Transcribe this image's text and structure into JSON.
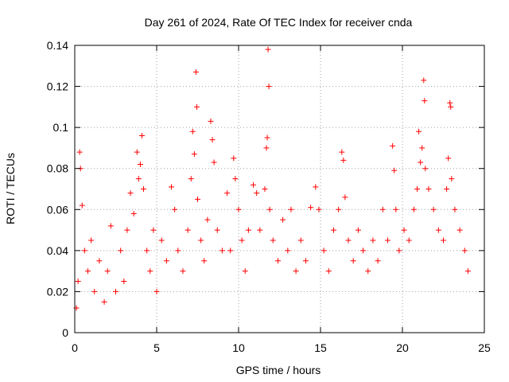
{
  "chart_data": {
    "type": "scatter",
    "title": "Day 261 of 2024, Rate Of TEC Index for receiver cnda",
    "xlabel": "GPS time / hours",
    "ylabel": "ROTI / TECUs",
    "xlim": [
      0,
      25
    ],
    "ylim": [
      0,
      0.14
    ],
    "xticks": [
      0,
      5,
      10,
      15,
      20,
      25
    ],
    "xtick_labels": [
      "0",
      "5",
      "10",
      "15",
      "20",
      "25"
    ],
    "yticks": [
      0,
      0.02,
      0.04,
      0.06,
      0.08,
      0.1,
      0.12,
      0.14
    ],
    "ytick_labels": [
      "0",
      "0.02",
      "0.04",
      "0.06",
      "0.08",
      "0.1",
      "0.12",
      "0.14"
    ],
    "grid": true,
    "marker": "plus",
    "series_color": "#ff0000",
    "series": [
      {
        "name": "ROTI",
        "points": [
          [
            0.1,
            0.012
          ],
          [
            0.2,
            0.025
          ],
          [
            0.3,
            0.088
          ],
          [
            0.35,
            0.08
          ],
          [
            0.45,
            0.062
          ],
          [
            0.6,
            0.04
          ],
          [
            0.8,
            0.03
          ],
          [
            1.0,
            0.045
          ],
          [
            1.2,
            0.02
          ],
          [
            1.5,
            0.035
          ],
          [
            1.8,
            0.015
          ],
          [
            2.0,
            0.03
          ],
          [
            2.2,
            0.052
          ],
          [
            2.5,
            0.02
          ],
          [
            2.8,
            0.04
          ],
          [
            3.0,
            0.025
          ],
          [
            3.2,
            0.05
          ],
          [
            3.4,
            0.068
          ],
          [
            3.6,
            0.058
          ],
          [
            3.8,
            0.088
          ],
          [
            3.9,
            0.075
          ],
          [
            4.0,
            0.082
          ],
          [
            4.1,
            0.096
          ],
          [
            4.2,
            0.07
          ],
          [
            4.4,
            0.04
          ],
          [
            4.6,
            0.03
          ],
          [
            4.8,
            0.05
          ],
          [
            5.0,
            0.02
          ],
          [
            5.3,
            0.045
          ],
          [
            5.6,
            0.035
          ],
          [
            5.9,
            0.071
          ],
          [
            6.1,
            0.06
          ],
          [
            6.3,
            0.04
          ],
          [
            6.6,
            0.03
          ],
          [
            6.9,
            0.05
          ],
          [
            7.1,
            0.075
          ],
          [
            7.2,
            0.098
          ],
          [
            7.3,
            0.087
          ],
          [
            7.4,
            0.127
          ],
          [
            7.45,
            0.11
          ],
          [
            7.5,
            0.065
          ],
          [
            7.7,
            0.045
          ],
          [
            7.9,
            0.035
          ],
          [
            8.1,
            0.055
          ],
          [
            8.3,
            0.103
          ],
          [
            8.4,
            0.094
          ],
          [
            8.5,
            0.083
          ],
          [
            8.7,
            0.05
          ],
          [
            9.0,
            0.04
          ],
          [
            9.3,
            0.068
          ],
          [
            9.5,
            0.04
          ],
          [
            9.7,
            0.085
          ],
          [
            9.8,
            0.075
          ],
          [
            10.0,
            0.06
          ],
          [
            10.2,
            0.045
          ],
          [
            10.4,
            0.03
          ],
          [
            10.6,
            0.05
          ],
          [
            10.9,
            0.072
          ],
          [
            11.1,
            0.068
          ],
          [
            11.3,
            0.05
          ],
          [
            11.6,
            0.07
          ],
          [
            11.7,
            0.09
          ],
          [
            11.75,
            0.095
          ],
          [
            11.8,
            0.138
          ],
          [
            11.85,
            0.12
          ],
          [
            11.9,
            0.06
          ],
          [
            12.1,
            0.045
          ],
          [
            12.4,
            0.035
          ],
          [
            12.7,
            0.055
          ],
          [
            13.0,
            0.04
          ],
          [
            13.2,
            0.06
          ],
          [
            13.5,
            0.03
          ],
          [
            13.8,
            0.045
          ],
          [
            14.1,
            0.035
          ],
          [
            14.4,
            0.061
          ],
          [
            14.7,
            0.071
          ],
          [
            14.9,
            0.06
          ],
          [
            15.2,
            0.04
          ],
          [
            15.5,
            0.03
          ],
          [
            15.8,
            0.05
          ],
          [
            16.1,
            0.06
          ],
          [
            16.3,
            0.088
          ],
          [
            16.4,
            0.084
          ],
          [
            16.5,
            0.066
          ],
          [
            16.7,
            0.045
          ],
          [
            17.0,
            0.035
          ],
          [
            17.3,
            0.05
          ],
          [
            17.6,
            0.04
          ],
          [
            17.9,
            0.03
          ],
          [
            18.2,
            0.045
          ],
          [
            18.5,
            0.035
          ],
          [
            18.8,
            0.06
          ],
          [
            19.1,
            0.045
          ],
          [
            19.4,
            0.091
          ],
          [
            19.5,
            0.079
          ],
          [
            19.6,
            0.06
          ],
          [
            19.8,
            0.04
          ],
          [
            20.1,
            0.05
          ],
          [
            20.4,
            0.045
          ],
          [
            20.7,
            0.06
          ],
          [
            20.9,
            0.07
          ],
          [
            21.0,
            0.098
          ],
          [
            21.1,
            0.083
          ],
          [
            21.2,
            0.09
          ],
          [
            21.3,
            0.123
          ],
          [
            21.35,
            0.113
          ],
          [
            21.4,
            0.08
          ],
          [
            21.6,
            0.07
          ],
          [
            21.9,
            0.06
          ],
          [
            22.2,
            0.05
          ],
          [
            22.5,
            0.045
          ],
          [
            22.7,
            0.07
          ],
          [
            22.8,
            0.085
          ],
          [
            22.9,
            0.112
          ],
          [
            22.95,
            0.11
          ],
          [
            23.0,
            0.075
          ],
          [
            23.2,
            0.06
          ],
          [
            23.5,
            0.05
          ],
          [
            23.8,
            0.04
          ],
          [
            24.0,
            0.03
          ]
        ]
      }
    ]
  }
}
